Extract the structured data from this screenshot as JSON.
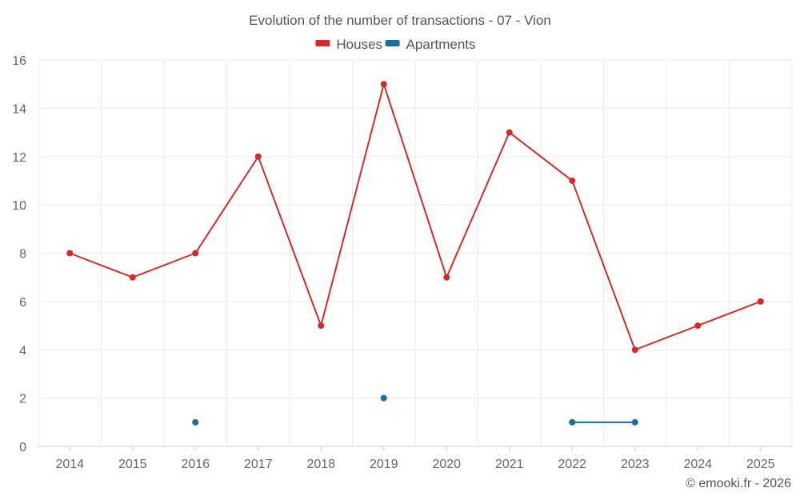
{
  "chart_data": {
    "type": "line",
    "title": "Evolution of the number of transactions - 07 - Vion",
    "categories": [
      "2014",
      "2015",
      "2016",
      "2017",
      "2018",
      "2019",
      "2020",
      "2021",
      "2022",
      "2023",
      "2024",
      "2025"
    ],
    "series": [
      {
        "name": "Houses",
        "color": "#d42a2a",
        "values": [
          8,
          7,
          8,
          12,
          5,
          15,
          7,
          13,
          11,
          4,
          5,
          6
        ]
      },
      {
        "name": "Apartments",
        "color": "#1a6ea0",
        "values": [
          null,
          null,
          1,
          null,
          null,
          2,
          null,
          null,
          1,
          1,
          null,
          null
        ]
      }
    ],
    "ylim": [
      0,
      16
    ],
    "yticks": [
      0,
      2,
      4,
      6,
      8,
      10,
      12,
      14,
      16
    ],
    "xlabel": "",
    "ylabel": "",
    "grid": true,
    "legend_position": "top-center"
  },
  "credit": "© emooki.fr - 2026"
}
